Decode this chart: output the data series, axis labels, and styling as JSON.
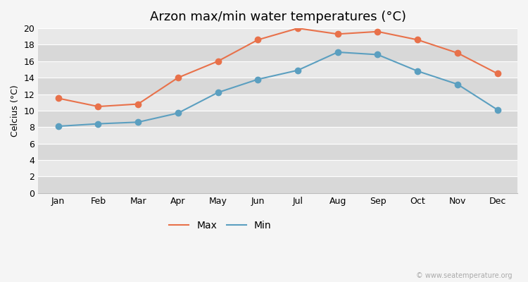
{
  "title": "Arzon max/min water temperatures (°C)",
  "ylabel": "Celcius (°C)",
  "months": [
    "Jan",
    "Feb",
    "Mar",
    "Apr",
    "May",
    "Jun",
    "Jul",
    "Aug",
    "Sep",
    "Oct",
    "Nov",
    "Dec"
  ],
  "max_values": [
    11.5,
    10.5,
    10.8,
    14.0,
    16.0,
    18.6,
    20.0,
    19.3,
    19.6,
    18.6,
    17.0,
    14.5
  ],
  "min_values": [
    8.1,
    8.4,
    8.6,
    9.7,
    12.2,
    13.8,
    14.9,
    17.1,
    16.8,
    14.8,
    13.2,
    10.1
  ],
  "max_color": "#e8714a",
  "min_color": "#5b9fc0",
  "ylim": [
    0,
    20
  ],
  "yticks": [
    0,
    2,
    4,
    6,
    8,
    10,
    12,
    14,
    16,
    18,
    20
  ],
  "bg_color": "#f5f5f5",
  "plot_bg_color": "#ebebeb",
  "grid_color": "#ffffff",
  "legend_labels": [
    "Max",
    "Min"
  ],
  "watermark": "© www.seatemperature.org",
  "title_fontsize": 13,
  "label_fontsize": 9,
  "tick_fontsize": 9,
  "legend_fontsize": 10
}
